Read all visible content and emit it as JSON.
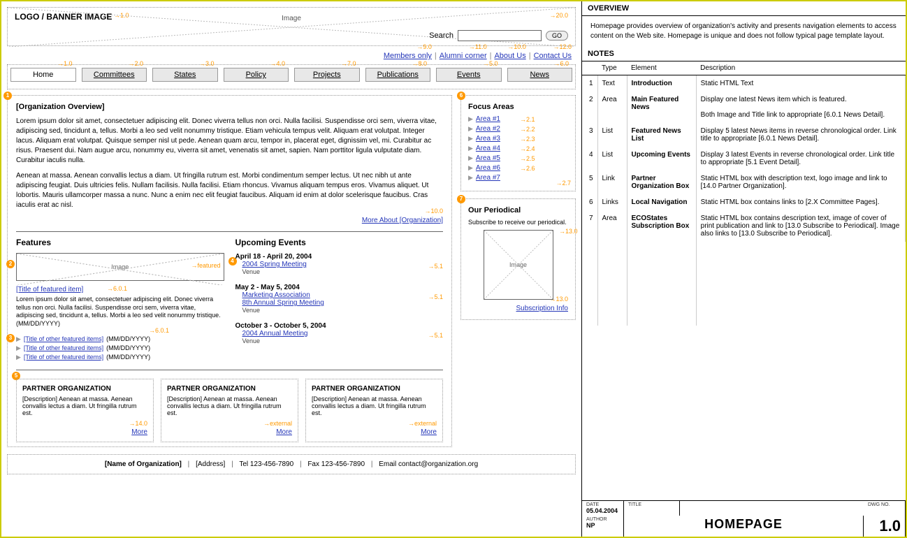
{
  "banner": {
    "title": "LOGO / BANNER IMAGE",
    "img_label": "Image",
    "search_label": "Search",
    "go_label": "GO",
    "ref1": "1.0",
    "ref2": "20.0"
  },
  "toplinks": {
    "items": [
      "Members only",
      "Alumni corner",
      "About Us",
      "Contact Us"
    ],
    "refs": [
      "9.0",
      "11.0",
      "10.0",
      "12.0"
    ]
  },
  "nav": {
    "tabs": [
      {
        "label": "Home",
        "ref": "1.0",
        "active": true
      },
      {
        "label": "Committees",
        "ref": "2.0"
      },
      {
        "label": "States",
        "ref": "3.0"
      },
      {
        "label": "Policy",
        "ref": "4.0"
      },
      {
        "label": "Projects",
        "ref": "7.0"
      },
      {
        "label": "Publications",
        "ref": "8.0"
      },
      {
        "label": "Events",
        "ref": "5.0"
      },
      {
        "label": "News",
        "ref": "6.0"
      }
    ]
  },
  "overview": {
    "heading": "[Organization Overview]",
    "p1": "Lorem ipsum dolor sit amet, consectetuer adipiscing elit. Donec viverra tellus non orci. Nulla facilisi. Suspendisse orci sem, viverra vitae, adipiscing sed, tincidunt a, tellus. Morbi a leo sed velit nonummy tristique. Etiam vehicula tempus velit. Aliquam erat volutpat. Integer lacus. Aliquam erat volutpat. Quisque semper nisl ut pede. Aenean quam arcu, tempor in, placerat eget, dignissim vel, mi. Curabitur ac risus. Praesent dui. Nam augue arcu, nonummy eu, viverra sit amet, venenatis sit amet, sapien. Nam porttitor ligula vulputate diam. Curabitur iaculis nulla.",
    "p2": "Aenean at massa. Aenean convallis lectus a diam. Ut fringilla rutrum est. Morbi condimentum semper lectus. Ut nec nibh ut ante adipiscing feugiat. Duis ultricies felis. Nullam facilisis. Nulla facilisi. Etiam rhoncus. Vivamus aliquam tempus eros. Vivamus aliquet. Ut lobortis. Mauris ullamcorper massa a nunc. Nunc a enim nec elit feugiat faucibus. Aliquam id enim at dolor scelerisque faucibus. Cras iaculis erat ac nisl.",
    "more": "More About [Organization]",
    "ref_more": "10.0"
  },
  "features": {
    "heading": "Features",
    "img_label": "Image",
    "img_ref": "featured",
    "title": "[Title of featured item]",
    "title_ref": "6.0.1",
    "desc": "Lorem ipsum dolor sit amet, consectetuer adipiscing elit. Donec viverra tellus non orci. Nulla facilisi. Suspendisse orci sem, viverra vitae, adipiscing sed, tincidunt a, tellus. Morbi a leo sed velit nonummy tristique. (MM/DD/YYYY)",
    "list": [
      {
        "title": "[Title of other featured items]",
        "date": "(MM/DD/YYYY)"
      },
      {
        "title": "[Title of other featured items]",
        "date": "(MM/DD/YYYY)"
      },
      {
        "title": "[Title of other featured items]",
        "date": "(MM/DD/YYYY)"
      }
    ],
    "list_ref": "6.0.1"
  },
  "events": {
    "heading": "Upcoming Events",
    "items": [
      {
        "date": "April 18 - April 20, 2004",
        "links": [
          "2004 Spring Meeting"
        ],
        "venue": "Venue",
        "ref": "5.1"
      },
      {
        "date": "May 2 - May 5, 2004",
        "links": [
          "Marketing Association",
          "8th Annual Spring Meeting"
        ],
        "venue": "Venue",
        "ref": "5.1"
      },
      {
        "date": "October 3 - October 5, 2004",
        "links": [
          "2004 Annual Meeting"
        ],
        "venue": "Venue",
        "ref": "5.1"
      }
    ]
  },
  "partners": [
    {
      "h": "PARTNER ORGANIZATION",
      "d": "[Description] Aenean at massa. Aenean convallis lectus a diam. Ut fringilla rutrum est.",
      "more": "More",
      "ref": "14.0"
    },
    {
      "h": "PARTNER ORGANIZATION",
      "d": "[Description] Aenean at massa. Aenean convallis lectus a diam. Ut fringilla rutrum est.",
      "more": "More",
      "ref": "external"
    },
    {
      "h": "PARTNER ORGANIZATION",
      "d": "[Description] Aenean at massa. Aenean convallis lectus a diam. Ut fringilla rutrum est.",
      "more": "More",
      "ref": "external"
    }
  ],
  "focus": {
    "heading": "Focus Areas",
    "items": [
      {
        "label": "Area #1",
        "ref": "2.1"
      },
      {
        "label": "Area #2",
        "ref": "2.2"
      },
      {
        "label": "Area #3",
        "ref": "2.3"
      },
      {
        "label": "Area #4",
        "ref": "2.4"
      },
      {
        "label": "Area #5",
        "ref": "2.5"
      },
      {
        "label": "Area #6",
        "ref": "2.6"
      },
      {
        "label": "Area #7",
        "ref": ""
      }
    ],
    "box_ref": "2.7"
  },
  "periodical": {
    "heading": "Our Periodical",
    "desc": "Subscribe to receive our periodical.",
    "img_label": "Image",
    "sub": "Subscription Info",
    "ref_img": "13.0",
    "ref_sub": "13.0"
  },
  "footer": {
    "org": "[Name of Organization]",
    "addr": "[Address]",
    "tel": "Tel 123-456-7890",
    "fax": "Fax 123-456-7890",
    "email": "Email contact@organization.org"
  },
  "right": {
    "ov_h": "OVERVIEW",
    "ov_text": "Homepage provides overview of organization's activity and presents navigation elements to access content on the Web site. Homepage is unique and does not follow typical page template layout.",
    "notes_h": "NOTES",
    "cols": [
      "",
      "Type",
      "Element",
      "Description"
    ],
    "rows": [
      {
        "n": "1",
        "type": "Text",
        "el": "Introduction",
        "desc": "Static HTML Text"
      },
      {
        "n": "2",
        "type": "Area",
        "el": "Main Featured News",
        "desc": "Display one latest News item which is featured.\n\nBoth Image and Title link to appropriate [6.0.1 News Detail]."
      },
      {
        "n": "3",
        "type": "List",
        "el": "Featured News List",
        "desc": "Display 5 latest News items in reverse chronological order. Link title to appropriate [6.0.1 News Detail]."
      },
      {
        "n": "4",
        "type": "List",
        "el": "Upcoming Events",
        "desc": "Display 3 latest Events in reverse chronological order. Link title to appropriate [5.1 Event Detail]."
      },
      {
        "n": "5",
        "type": "Link",
        "el": "Partner Organization Box",
        "desc": "Static HTML box with description text, logo image and link to [14.0 Partner Organization]."
      },
      {
        "n": "6",
        "type": "Links",
        "el": "Local Navigation",
        "desc": "Static HTML box contains links to [2.X Committee Pages]."
      },
      {
        "n": "7",
        "type": "Area",
        "el": "ECOStates Subscription Box",
        "desc": "Static HTML box contains description text, image of cover of print publication and link to [13.0 Subscribe to Periodical]. Image also links to [13.0 Subscribe to Periodical]."
      }
    ]
  },
  "titleblock": {
    "date_label": "DATE",
    "date": "05.04.2004",
    "author_label": "AUTHOR",
    "author": "NP",
    "title_label": "TITLE",
    "title": "HOMEPAGE",
    "dwg_label": "DWG NO.",
    "dwg": "1.0"
  }
}
